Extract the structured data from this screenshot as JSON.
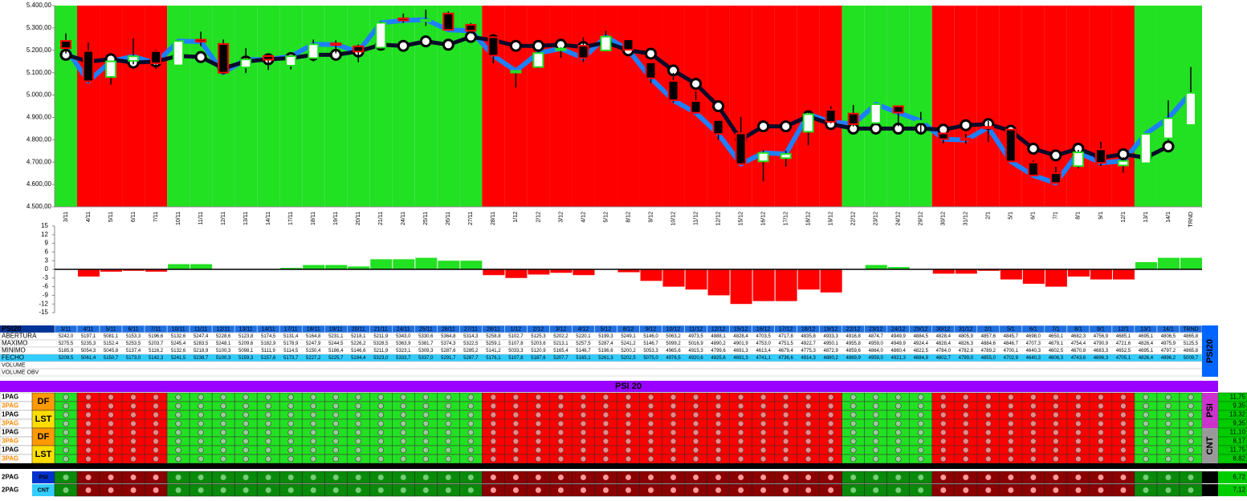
{
  "chart_data": {
    "type": "candlestick",
    "categories": [
      "3/11",
      "4/11",
      "5/11",
      "6/11",
      "7/11",
      "10/11",
      "11/11",
      "12/11",
      "13/11",
      "14/11",
      "17/11",
      "18/11",
      "19/11",
      "20/11",
      "21/11",
      "24/11",
      "25/11",
      "26/11",
      "27/11",
      "28/11",
      "1/12",
      "2/12",
      "3/12",
      "4/12",
      "5/12",
      "8/12",
      "9/12",
      "10/12",
      "11/12",
      "12/12",
      "15/12",
      "16/12",
      "17/12",
      "18/12",
      "19/12",
      "22/12",
      "23/12",
      "24/12",
      "29/12",
      "30/12",
      "31/12",
      "2/1",
      "5/1",
      "6/1",
      "7/1",
      "8/1",
      "9/1",
      "12/1",
      "13/1",
      "14/1",
      "TRND"
    ],
    "series": [
      {
        "name": "ABERTURA",
        "values": [
          5242.0,
          5197.1,
          5081.1,
          5153.3,
          5196.6,
          5132.6,
          5247.4,
          5228.6,
          5123.8,
          5174.5,
          5131.4,
          5164.8,
          5231.1,
          5218.1,
          5211.9,
          5343.0,
          5330.6,
          5364.8,
          5314.3,
          5258.8,
          5102.7,
          5125.3,
          5202.2,
          5220.1,
          5199.3,
          5249.1,
          5146.0,
          5063.2,
          4973.5,
          4888.1,
          4828.4,
          4703.5,
          4717.8,
          4835.8,
          4933.3,
          4916.8,
          4874.7,
          4949.9,
          4884.5,
          4828.4,
          4805.9,
          4857.6,
          4845.7,
          4698.0,
          4650.1,
          4682.3,
          4756.9,
          4685.1,
          4695.1,
          4806.5,
          4865.8
        ],
        "value_labels": [
          "5242,0",
          "5197,1",
          "5081,1",
          "5153,3",
          "5196,6",
          "5132,6",
          "5247,4",
          "5228,6",
          "5123,8",
          "5174,5",
          "5131,4",
          "5164,8",
          "5231,1",
          "5218,1",
          "5211,9",
          "5343,0",
          "5330,6",
          "5364,8",
          "5314,3",
          "5258,8",
          "5102,7",
          "5125,3",
          "5202,2",
          "5220,1",
          "5199,3",
          "5249,1",
          "5146,0",
          "5063,2",
          "4973,5",
          "4888,1",
          "4828,4",
          "4703,5",
          "4717,8",
          "4835,8",
          "4933,3",
          "4916,8",
          "4874,7",
          "4949,9",
          "4884,5",
          "4828,4",
          "4805,9",
          "4857,6",
          "4845,7",
          "4698,0",
          "4650,1",
          "4682,3",
          "4756,9",
          "4685,1",
          "4695,1",
          "4806,5",
          "4865,8"
        ]
      },
      {
        "name": "MAXIMO",
        "values": [
          5275.5,
          5235.3,
          5152.4,
          5253.5,
          5203.7,
          5245.4,
          5283.5,
          5248.1,
          5209.6,
          5182.9,
          5178.9,
          5247.9,
          5244.5,
          5226.2,
          5328.5,
          5363.9,
          5381.7,
          5374.3,
          5322.5,
          5259.1,
          5107.8,
          5203.6,
          5213.1,
          5257.5,
          5287.4,
          5241.2,
          5146.7,
          5099.2,
          5016.9,
          4890.2,
          4901.9,
          4753.0,
          4751.5,
          4922.7,
          4950.1,
          4955.8,
          4959.0,
          4949.9,
          4924.4,
          4828.4,
          4826.3,
          4884.6,
          4846.7,
          4707.3,
          4679.1,
          4754.4,
          4790.9,
          4721.6,
          4826.4,
          4975.9,
          5125.5
        ],
        "value_labels": [
          "5275,5",
          "5235,3",
          "5152,4",
          "5253,5",
          "5203,7",
          "5245,4",
          "5283,5",
          "5248,1",
          "5209,6",
          "5182,9",
          "5178,9",
          "5247,9",
          "5244,5",
          "5226,2",
          "5328,5",
          "5363,9",
          "5381,7",
          "5374,3",
          "5322,5",
          "5259,1",
          "5107,8",
          "5203,6",
          "5213,1",
          "5257,5",
          "5287,4",
          "5241,2",
          "5146,7",
          "5099,2",
          "5016,9",
          "4890,2",
          "4901,9",
          "4753,0",
          "4751,5",
          "4922,7",
          "4950,1",
          "4955,8",
          "4959,0",
          "4949,9",
          "4924,4",
          "4828,4",
          "4826,3",
          "4884,6",
          "4846,7",
          "4707,3",
          "4679,1",
          "4754,4",
          "4790,9",
          "4721,6",
          "4826,4",
          "4975,9",
          "5125,5"
        ]
      },
      {
        "name": "MINIMO",
        "values": [
          5185.9,
          5054.3,
          5045.8,
          5137.4,
          5116.2,
          5132.6,
          5218.9,
          5100.3,
          5098.1,
          5111.9,
          5114.5,
          5150.4,
          5186.4,
          5146.6,
          5211.9,
          5323.1,
          5309.3,
          5287.6,
          5285.2,
          5141.2,
          5033.3,
          5120.9,
          5165.4,
          5146.7,
          5196.6,
          5200.2,
          5053.3,
          4965.6,
          4915.3,
          4799.6,
          4691.3,
          4613.4,
          4679.4,
          4775.3,
          4872.9,
          4859.6,
          4864.0,
          4860.4,
          4822.5,
          4784.0,
          4782.8,
          4789.2,
          4700.1,
          4640.3,
          4602.5,
          4670.8,
          4683.3,
          4652.5,
          4695.1,
          4797.2,
          4865.8
        ],
        "value_labels": [
          "5185,9",
          "5054,3",
          "5045,8",
          "5137,4",
          "5116,2",
          "5132,6",
          "5218,9",
          "5100,3",
          "5098,1",
          "5111,9",
          "5114,5",
          "5150,4",
          "5186,4",
          "5146,6",
          "5211,9",
          "5323,1",
          "5309,3",
          "5287,6",
          "5285,2",
          "5141,2",
          "5033,3",
          "5120,9",
          "5165,4",
          "5146,7",
          "5196,6",
          "5200,2",
          "5053,3",
          "4965,6",
          "4915,3",
          "4799,6",
          "4691,3",
          "4613,4",
          "4679,4",
          "4775,3",
          "4872,9",
          "4859,6",
          "4864,0",
          "4860,4",
          "4822,5",
          "4784,0",
          "4782,8",
          "4789,2",
          "4700,1",
          "4640,3",
          "4602,5",
          "4670,8",
          "4683,3",
          "4652,5",
          "4695,1",
          "4797,2",
          "4865,8"
        ]
      },
      {
        "name": "FECHO",
        "color": "#1e7fff",
        "values": [
          5209.5,
          5061.4,
          5150.7,
          5173.0,
          5142.3,
          5241.5,
          5238.7,
          5100.3,
          5159.3,
          5157.6,
          5173.7,
          5227.2,
          5225.7,
          5194.4,
          5323.0,
          5333.7,
          5337.0,
          5291.7,
          5287.7,
          5176.1,
          5107.8,
          5187.6,
          5207.7,
          5165.1,
          5261.3,
          5202.5,
          5075.0,
          4976.5,
          4920.6,
          4825.6,
          4691.3,
          4741.1,
          4736.6,
          4914.3,
          4880.2,
          4869.9,
          4959.0,
          4921.3,
          4884.9,
          4802.7,
          4799.0,
          4855.0,
          4702.9,
          4640.3,
          4606.3,
          4743.6,
          4696.3,
          4705.1,
          4826.4,
          4896.2,
          5009.7
        ],
        "value_labels": [
          "5209,5",
          "5061,4",
          "5150,7",
          "5173,0",
          "5142,3",
          "5241,5",
          "5238,7",
          "5100,3",
          "5159,3",
          "5157,6",
          "5173,7",
          "5227,2",
          "5225,7",
          "5194,4",
          "5323,0",
          "5333,7",
          "5337,0",
          "5291,7",
          "5287,7",
          "5176,1",
          "5107,8",
          "5187,6",
          "5207,7",
          "5165,1",
          "5261,3",
          "5202,5",
          "5075,0",
          "4976,5",
          "4920,6",
          "4825,6",
          "4691,3",
          "4741,1",
          "4736,6",
          "4914,3",
          "4880,2",
          "4869,9",
          "4959,0",
          "4921,3",
          "4884,9",
          "4802,7",
          "4799,0",
          "4855,0",
          "4702,9",
          "4640,3",
          "4606,3",
          "4743,6",
          "4696,3",
          "4705,1",
          "4826,4",
          "4896,2",
          "5009,7"
        ]
      }
    ],
    "average": {
      "color": "#0a0a2a",
      "values": [
        5180,
        5150,
        5160,
        5145,
        5150,
        5175,
        5170,
        5120,
        5150,
        5160,
        5165,
        5180,
        5180,
        5195,
        5225,
        5220,
        5240,
        5225,
        5260,
        5245,
        5220,
        5220,
        5225,
        5215,
        5235,
        5200,
        5185,
        5110,
        5050,
        4950,
        4800,
        4860,
        4860,
        4905,
        4870,
        4850,
        4850,
        4850,
        4850,
        4845,
        4865,
        4870,
        4840,
        4760,
        4730,
        4760,
        4720,
        4735,
        4720,
        4770,
        null
      ]
    },
    "up_color": "#22e022",
    "down_color": "#ff0000",
    "column_colors": [
      "#22e022",
      "#ff0000",
      "#ff0000",
      "#ff0000",
      "#ff0000",
      "#22e022",
      "#22e022",
      "#22e022",
      "#22e022",
      "#22e022",
      "#22e022",
      "#22e022",
      "#22e022",
      "#22e022",
      "#22e022",
      "#22e022",
      "#22e022",
      "#22e022",
      "#22e022",
      "#ff0000",
      "#ff0000",
      "#ff0000",
      "#ff0000",
      "#ff0000",
      "#ff0000",
      "#ff0000",
      "#ff0000",
      "#ff0000",
      "#ff0000",
      "#ff0000",
      "#ff0000",
      "#ff0000",
      "#ff0000",
      "#ff0000",
      "#ff0000",
      "#22e022",
      "#22e022",
      "#22e022",
      "#22e022",
      "#ff0000",
      "#ff0000",
      "#ff0000",
      "#ff0000",
      "#ff0000",
      "#ff0000",
      "#ff0000",
      "#ff0000",
      "#ff0000",
      "#22e022",
      "#22e022",
      "#22e022"
    ],
    "ylim": [
      4500,
      5400
    ],
    "yticks": [
      {
        "value": 4500,
        "label": "4.500,00"
      },
      {
        "value": 4600,
        "label": "4.600,00"
      },
      {
        "value": 4700,
        "label": "4.700,00"
      },
      {
        "value": 4800,
        "label": "4.800,00"
      },
      {
        "value": 4900,
        "label": "4.900,00"
      },
      {
        "value": 5000,
        "label": "5.000,00"
      },
      {
        "value": 5100,
        "label": "5.100,00"
      },
      {
        "value": 5200,
        "label": "5.200,00"
      },
      {
        "value": 5300,
        "label": "5.300,00"
      },
      {
        "value": 5400,
        "label": "5.400,00"
      }
    ],
    "histogram": {
      "type": "bar",
      "values": [
        0,
        -2.5,
        -0.8,
        -0.5,
        -0.8,
        1.8,
        1.8,
        0,
        0,
        0,
        0.5,
        1.5,
        1.5,
        1,
        3.5,
        3.5,
        4,
        3,
        3,
        -2,
        -3,
        -1.8,
        -1.2,
        -2,
        0,
        -1,
        -4,
        -6,
        -7,
        -9,
        -12,
        -11,
        -11,
        -7,
        -8,
        0,
        1.5,
        0.8,
        0,
        -1.5,
        -1.5,
        -0.5,
        -3.5,
        -5,
        -6,
        -2.5,
        -3.5,
        -3.5,
        2.5,
        4,
        4
      ],
      "ylim": [
        -15,
        15
      ],
      "yticks": [
        15,
        12,
        9,
        6,
        3,
        0,
        -3,
        -6,
        -9,
        -12,
        -15
      ]
    }
  },
  "table": {
    "title": "PSI20",
    "side_label": "PSI20",
    "extra_rows": [
      "VOLUME",
      "VOLUME OBV"
    ]
  },
  "signals": {
    "title": "PSI 20",
    "groups": [
      {
        "label": "PSI",
        "rows": [
          {
            "name": "1PAG",
            "value": "11,75"
          },
          {
            "name": "3PAG",
            "value": "9,35"
          },
          {
            "name": "1PAG",
            "value": "13,32"
          },
          {
            "name": "3PAG",
            "value": "9,35"
          }
        ],
        "badges": [
          "DF",
          "LST"
        ]
      },
      {
        "label": "CNT",
        "rows": [
          {
            "name": "1PAG",
            "value": "11,10"
          },
          {
            "name": "3PAG",
            "value": "8,17"
          },
          {
            "name": "1PAG",
            "value": "11,75"
          },
          {
            "name": "3PAG",
            "value": "8,82"
          }
        ],
        "badges": [
          "DF",
          "LST"
        ]
      }
    ],
    "bottom": [
      {
        "name": "2PAG",
        "badge": "PSI",
        "tag": "PSI",
        "value": "6,72"
      },
      {
        "name": "2PAG",
        "badge": "CNT",
        "tag": "CNT",
        "value": "7,12"
      }
    ]
  }
}
